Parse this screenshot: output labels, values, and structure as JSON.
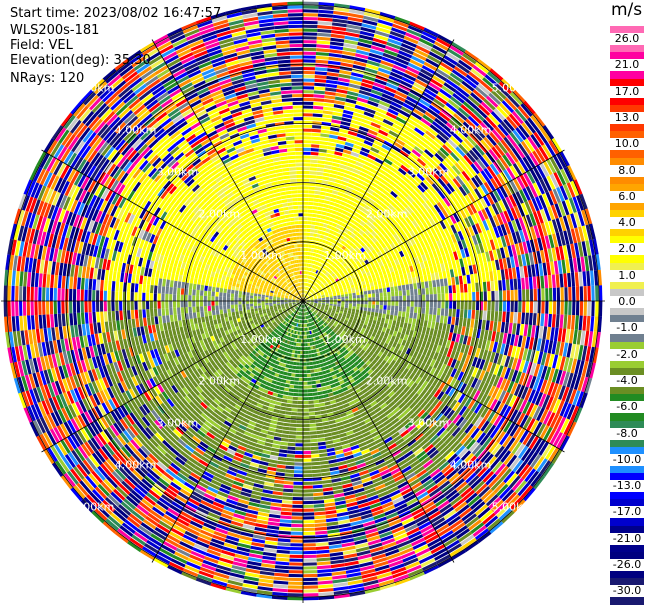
{
  "header": {
    "start_time": "Start time: 2023/08/02 16:47:57",
    "instrument": "WLS200s-181",
    "field": "Field: VEL",
    "elevation": "Elevation(deg): 35.30",
    "nrays": "NRays: 120"
  },
  "colorbar": {
    "unit": "m/s",
    "ticks": [
      "26.0",
      "21.0",
      "17.0",
      "13.0",
      "10.0",
      "8.0",
      "6.0",
      "4.0",
      "2.0",
      "1.0",
      "0.0",
      "-1.0",
      "-2.0",
      "-4.0",
      "-6.0",
      "-8.0",
      "-10.0",
      "-13.0",
      "-17.0",
      "-21.0",
      "-26.0",
      "-30.0"
    ],
    "colors": [
      "#ff69b4",
      "#ff00a0",
      "#ff0000",
      "#ff3800",
      "#ff6000",
      "#ff8c00",
      "#ffa500",
      "#ffd200",
      "#ffff00",
      "#f0f050",
      "#c8c8c8",
      "#708090",
      "#9acd32",
      "#6b8e23",
      "#228b22",
      "#2e8b57",
      "#1e90ff",
      "#0000ff",
      "#0000cd",
      "#00008b",
      "#000080",
      "#191970"
    ]
  },
  "chart_data": {
    "type": "ppi",
    "field": "VEL",
    "units": "m/s",
    "nrays": 120,
    "elevation_deg": 35.3,
    "range_rings_km": [
      1.0,
      2.0,
      3.0,
      4.0,
      5.0
    ],
    "range_labels": [
      "1.00km",
      "2.00km",
      "3.00km",
      "4.00km",
      "5.00km"
    ],
    "vmin": -30.0,
    "vmax": 26.0,
    "pattern": {
      "near_field_max_km": 2.4,
      "north_sector_velocity_ms": 2.0,
      "northwest_core_velocity_ms": 4.0,
      "south_sector_velocity_ms": -4.0,
      "south_core_velocity_ms": -6.0,
      "centerline_velocity_ms": -1.0,
      "far_field": "noise"
    }
  }
}
